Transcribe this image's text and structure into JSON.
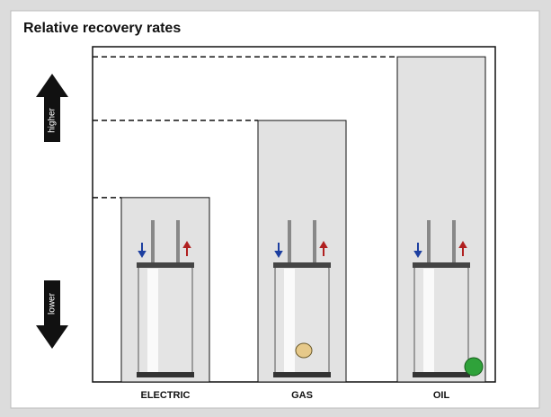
{
  "chart_data": {
    "type": "bar",
    "title": "Relative recovery rates",
    "categories": [
      "ELECTRIC",
      "GAS",
      "OIL"
    ],
    "values": [
      55,
      78,
      97
    ],
    "ylim": [
      0,
      100
    ],
    "color": "#e2e2e2",
    "higher_label": "higher",
    "lower_label": "lower"
  }
}
